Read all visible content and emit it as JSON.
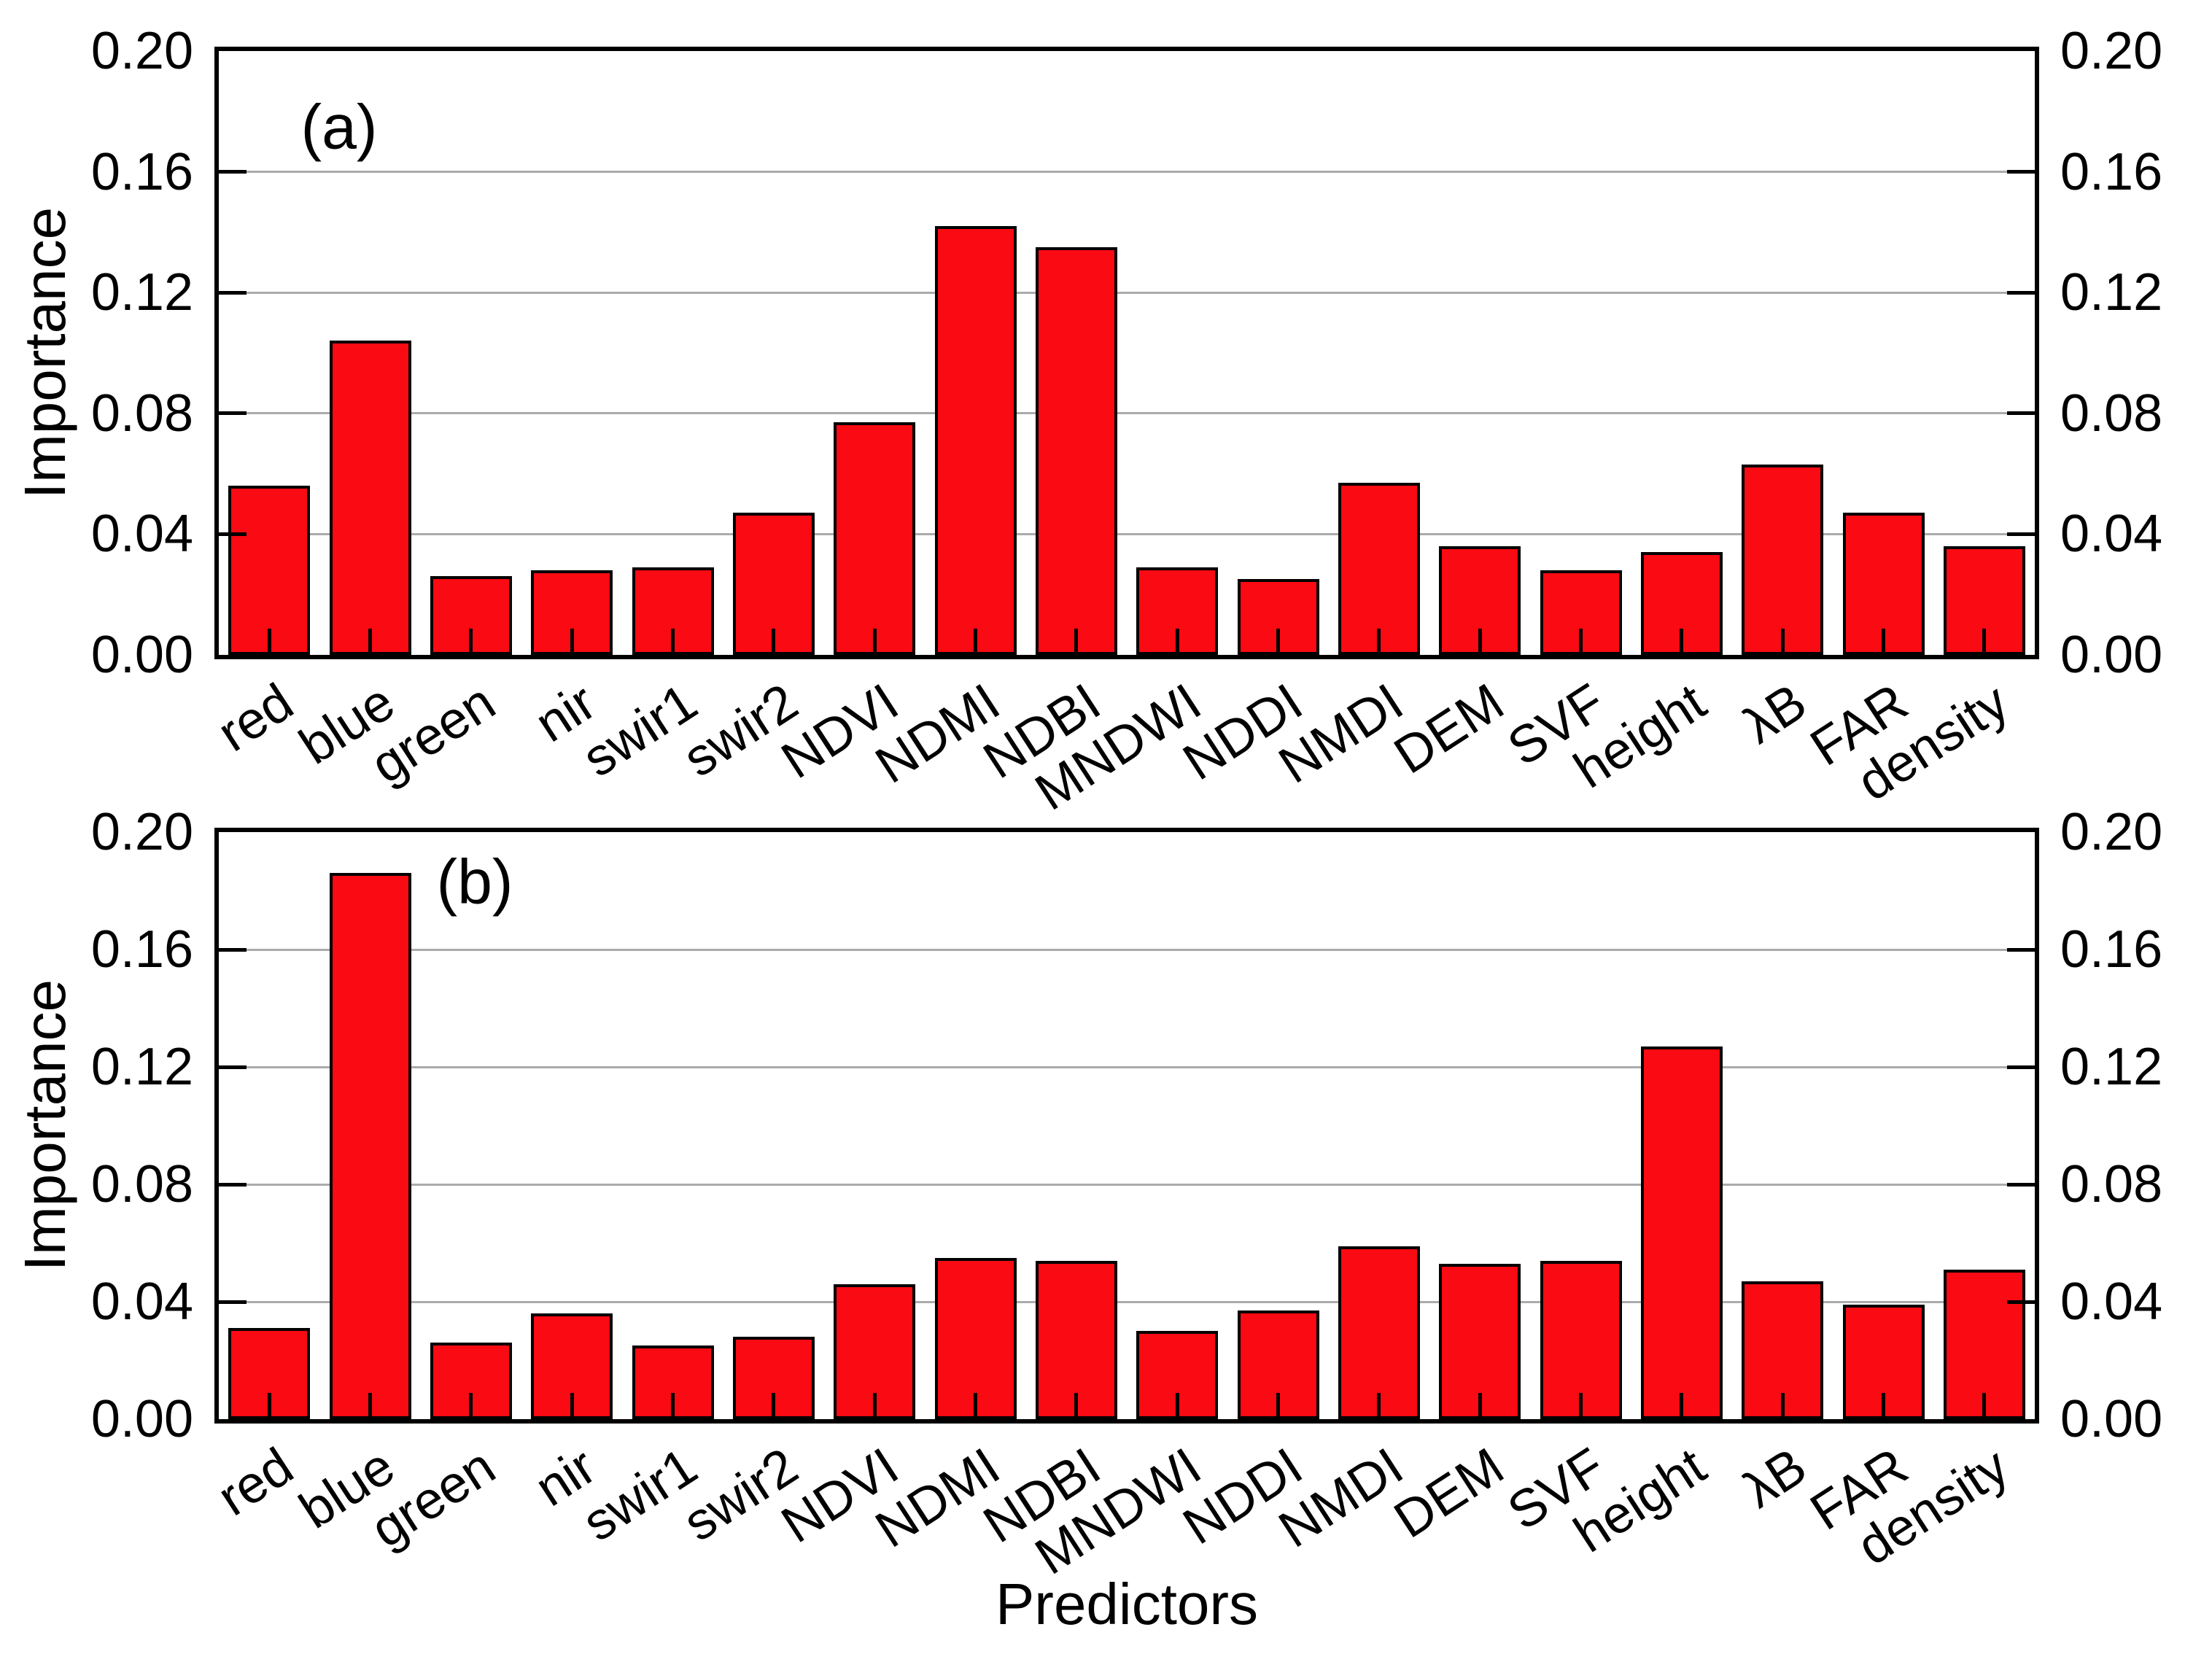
{
  "figure": {
    "xlabel": "Predictors",
    "background_color": "#FFFFFF",
    "bar_color": "#FA0A12",
    "bar_border_color": "#000000",
    "grid_color": "#ABABAB",
    "frame_color": "#000000"
  },
  "chart_data": [
    {
      "type": "bar",
      "panel": "(a)",
      "ylabel": "Importance",
      "categories": [
        "red",
        "blue",
        "green",
        "nir",
        "swir1",
        "swir2",
        "NDVI",
        "NDMI",
        "NDBI",
        "MNDWI",
        "NDDI",
        "NMDI",
        "DEM",
        "SVF",
        "height",
        "λB",
        "FAR",
        "density"
      ],
      "values": [
        0.056,
        0.104,
        0.026,
        0.028,
        0.029,
        0.047,
        0.077,
        0.142,
        0.135,
        0.029,
        0.025,
        0.057,
        0.036,
        0.028,
        0.034,
        0.063,
        0.047,
        0.036
      ],
      "ylim": [
        0.0,
        0.2
      ],
      "ytick_labels": [
        "0.00",
        "0.04",
        "0.08",
        "0.12",
        "0.16",
        "0.20"
      ],
      "gridline_values": [
        0.04,
        0.08,
        0.12,
        0.16
      ],
      "grid": true,
      "legend": "none"
    },
    {
      "type": "bar",
      "panel": "(b)",
      "ylabel": "Importance",
      "categories": [
        "red",
        "blue",
        "green",
        "nir",
        "swir1",
        "swir2",
        "NDVI",
        "NDMI",
        "NDBI",
        "MNDWI",
        "NDDI",
        "NMDI",
        "DEM",
        "SVF",
        "height",
        "λB",
        "FAR",
        "density"
      ],
      "values": [
        0.031,
        0.186,
        0.026,
        0.036,
        0.025,
        0.028,
        0.046,
        0.055,
        0.054,
        0.03,
        0.037,
        0.059,
        0.053,
        0.054,
        0.127,
        0.047,
        0.039,
        0.051
      ],
      "ylim": [
        0.0,
        0.2
      ],
      "ytick_labels": [
        "0.00",
        "0.04",
        "0.08",
        "0.12",
        "0.16",
        "0.20"
      ],
      "gridline_values": [
        0.04,
        0.08,
        0.12,
        0.16
      ],
      "grid": true,
      "legend": "none"
    }
  ]
}
